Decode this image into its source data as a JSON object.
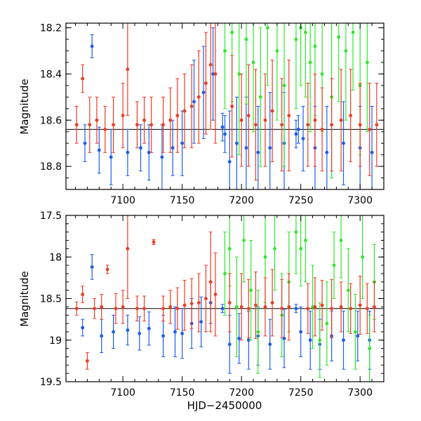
{
  "chart_data": [
    {
      "type": "scatter",
      "panel": "top",
      "title": "",
      "xlabel": "",
      "ylabel": "Magnitude",
      "xlim": [
        7052,
        7320
      ],
      "ylim": [
        18.9,
        18.18
      ],
      "y_inverted": true,
      "xticks": [
        7100,
        7150,
        7200,
        7250,
        7300
      ],
      "xtick_labels": [
        "7100",
        "7150",
        "7200",
        "7250",
        "7300"
      ],
      "yticks": [
        18.2,
        18.4,
        18.6,
        18.8
      ],
      "ytick_labels": [
        "18.2",
        "18.4",
        "18.6",
        "18.8"
      ],
      "reference_line_y": 18.64,
      "series": [
        {
          "name": "blue",
          "color": "#1a5cf0",
          "x": [
            7068,
            7074,
            7080,
            7090,
            7104,
            7115,
            7122,
            7133,
            7142,
            7150,
            7160,
            7168,
            7176,
            7184,
            7186,
            7190,
            7196,
            7204,
            7214,
            7224,
            7236,
            7246,
            7248,
            7252,
            7262,
            7272,
            7286,
            7300,
            7310
          ],
          "y": [
            18.7,
            18.28,
            18.73,
            18.76,
            18.74,
            18.72,
            18.74,
            18.76,
            18.72,
            18.7,
            18.52,
            18.48,
            18.4,
            18.63,
            18.66,
            18.78,
            18.7,
            18.72,
            18.74,
            18.72,
            18.7,
            18.66,
            18.64,
            18.68,
            18.72,
            18.74,
            18.7,
            18.72,
            18.74
          ],
          "err": [
            0.08,
            0.05,
            0.1,
            0.12,
            0.1,
            0.1,
            0.12,
            0.14,
            0.12,
            0.14,
            0.18,
            0.2,
            0.2,
            0.06,
            0.08,
            0.22,
            0.2,
            0.22,
            0.2,
            0.24,
            0.22,
            0.06,
            0.06,
            0.14,
            0.18,
            0.2,
            0.18,
            0.18,
            0.2
          ]
        },
        {
          "name": "green",
          "color": "#2ee82e",
          "x": [
            7186,
            7192,
            7198,
            7204,
            7210,
            7216,
            7222,
            7230,
            7236,
            7246,
            7250,
            7254,
            7258,
            7262,
            7268,
            7276,
            7282,
            7288,
            7294,
            7300,
            7306
          ],
          "y": [
            18.3,
            18.22,
            18.4,
            18.25,
            18.35,
            18.5,
            18.2,
            18.3,
            18.45,
            18.25,
            18.2,
            18.22,
            18.35,
            18.28,
            18.4,
            18.5,
            18.24,
            18.3,
            18.22,
            18.45,
            18.35
          ],
          "err": [
            0.25,
            0.3,
            0.35,
            0.28,
            0.3,
            0.3,
            0.25,
            0.3,
            0.35,
            0.3,
            0.25,
            0.28,
            0.3,
            0.3,
            0.25,
            0.35,
            0.28,
            0.3,
            0.25,
            0.3,
            0.3
          ]
        },
        {
          "name": "red",
          "color": "#f03a24",
          "x": [
            7061,
            7066,
            7072,
            7078,
            7085,
            7092,
            7100,
            7104,
            7112,
            7118,
            7124,
            7134,
            7140,
            7146,
            7152,
            7158,
            7164,
            7170,
            7174,
            7178,
            7192,
            7200,
            7206,
            7212,
            7220,
            7226,
            7234,
            7240,
            7256,
            7262,
            7268,
            7276,
            7284,
            7292,
            7300,
            7308,
            7314
          ],
          "y": [
            18.62,
            18.42,
            18.62,
            18.6,
            18.64,
            18.62,
            18.58,
            18.38,
            18.62,
            18.6,
            18.62,
            18.62,
            18.6,
            18.58,
            18.56,
            18.54,
            18.5,
            18.44,
            18.36,
            18.4,
            18.54,
            18.6,
            18.58,
            18.62,
            18.6,
            18.56,
            18.62,
            18.58,
            18.62,
            18.6,
            18.64,
            18.62,
            18.6,
            18.58,
            18.62,
            18.64,
            18.62
          ],
          "err": [
            0.08,
            0.06,
            0.12,
            0.1,
            0.1,
            0.12,
            0.14,
            0.2,
            0.1,
            0.1,
            0.12,
            0.12,
            0.14,
            0.16,
            0.16,
            0.18,
            0.2,
            0.22,
            0.28,
            0.3,
            0.22,
            0.2,
            0.22,
            0.24,
            0.2,
            0.22,
            0.2,
            0.24,
            0.18,
            0.2,
            0.18,
            0.2,
            0.22,
            0.2,
            0.18,
            0.2,
            0.18
          ]
        }
      ]
    },
    {
      "type": "scatter",
      "panel": "bottom",
      "title": "",
      "xlabel": "HJD−2450000",
      "ylabel": "Magnitude",
      "xlim": [
        7052,
        7320
      ],
      "ylim": [
        19.5,
        17.5
      ],
      "y_inverted": true,
      "xticks": [
        7100,
        7150,
        7200,
        7250,
        7300
      ],
      "xtick_labels": [
        "7100",
        "7150",
        "7200",
        "7250",
        "7300"
      ],
      "yticks": [
        17.5,
        18,
        18.5,
        19,
        19.5
      ],
      "ytick_labels": [
        "17.5",
        "18",
        "18.5",
        "19",
        "19.5"
      ],
      "reference_line_y": 18.62,
      "series": [
        {
          "name": "blue",
          "color": "#1a5cf0",
          "x": [
            7066,
            7074,
            7082,
            7092,
            7104,
            7114,
            7122,
            7134,
            7144,
            7150,
            7158,
            7166,
            7174,
            7184,
            7190,
            7198,
            7206,
            7214,
            7224,
            7236,
            7246,
            7250,
            7258,
            7266,
            7276,
            7286,
            7298,
            7308
          ],
          "y": [
            18.85,
            18.12,
            18.95,
            18.9,
            18.88,
            18.92,
            18.86,
            18.95,
            18.9,
            18.92,
            18.8,
            18.78,
            18.55,
            18.62,
            19.05,
            18.98,
            19.0,
            18.95,
            19.05,
            18.98,
            18.62,
            18.9,
            19.0,
            19.05,
            18.95,
            19.0,
            18.95,
            19.0
          ],
          "err": [
            0.1,
            0.15,
            0.2,
            0.2,
            0.18,
            0.2,
            0.2,
            0.25,
            0.3,
            0.3,
            0.3,
            0.3,
            0.25,
            0.05,
            0.35,
            0.3,
            0.35,
            0.35,
            0.3,
            0.35,
            0.05,
            0.3,
            0.35,
            0.3,
            0.3,
            0.35,
            0.3,
            0.35
          ]
        },
        {
          "name": "green",
          "color": "#2ee82e",
          "x": [
            7186,
            7190,
            7196,
            7202,
            7208,
            7214,
            7220,
            7228,
            7234,
            7240,
            7246,
            7250,
            7254,
            7260,
            7266,
            7272,
            7278,
            7284,
            7290,
            7296,
            7302,
            7308,
            7312
          ],
          "y": [
            18.2,
            17.9,
            18.6,
            17.8,
            18.4,
            18.9,
            18.0,
            17.9,
            18.7,
            18.3,
            17.7,
            17.9,
            17.8,
            18.6,
            19.0,
            18.8,
            18.1,
            17.8,
            18.4,
            18.9,
            18.0,
            19.1,
            18.3
          ],
          "err": [
            0.5,
            0.45,
            0.6,
            0.5,
            0.6,
            0.5,
            0.55,
            0.5,
            0.5,
            0.6,
            0.5,
            0.45,
            0.5,
            0.5,
            0.45,
            0.5,
            0.4,
            0.45,
            0.5,
            0.45,
            0.5,
            0.4,
            0.45
          ]
        },
        {
          "name": "red",
          "color": "#f03a24",
          "x": [
            7061,
            7066,
            7070,
            7076,
            7082,
            7087,
            7094,
            7100,
            7104,
            7112,
            7118,
            7126,
            7134,
            7140,
            7146,
            7152,
            7158,
            7164,
            7170,
            7174,
            7178,
            7190,
            7200,
            7206,
            7212,
            7220,
            7226,
            7234,
            7240,
            7256,
            7262,
            7268,
            7276,
            7284,
            7292,
            7300,
            7306,
            7312
          ],
          "y": [
            18.62,
            18.45,
            19.25,
            18.62,
            18.6,
            18.15,
            18.62,
            18.6,
            17.9,
            18.62,
            18.62,
            17.82,
            18.62,
            18.6,
            18.62,
            18.58,
            18.56,
            18.55,
            18.5,
            18.3,
            18.45,
            18.55,
            18.6,
            18.62,
            18.58,
            18.6,
            18.55,
            18.62,
            18.6,
            18.62,
            18.6,
            18.58,
            18.62,
            18.6,
            18.62,
            18.58,
            18.62,
            18.6
          ],
          "err": [
            0.08,
            0.1,
            0.1,
            0.12,
            0.15,
            0.05,
            0.18,
            0.2,
            0.6,
            0.15,
            0.15,
            0.03,
            0.15,
            0.2,
            0.25,
            0.3,
            0.3,
            0.35,
            0.4,
            0.6,
            0.5,
            0.35,
            0.4,
            0.35,
            0.4,
            0.35,
            0.4,
            0.35,
            0.4,
            0.3,
            0.35,
            0.3,
            0.35,
            0.3,
            0.3,
            0.35,
            0.3,
            0.3
          ]
        }
      ]
    }
  ]
}
